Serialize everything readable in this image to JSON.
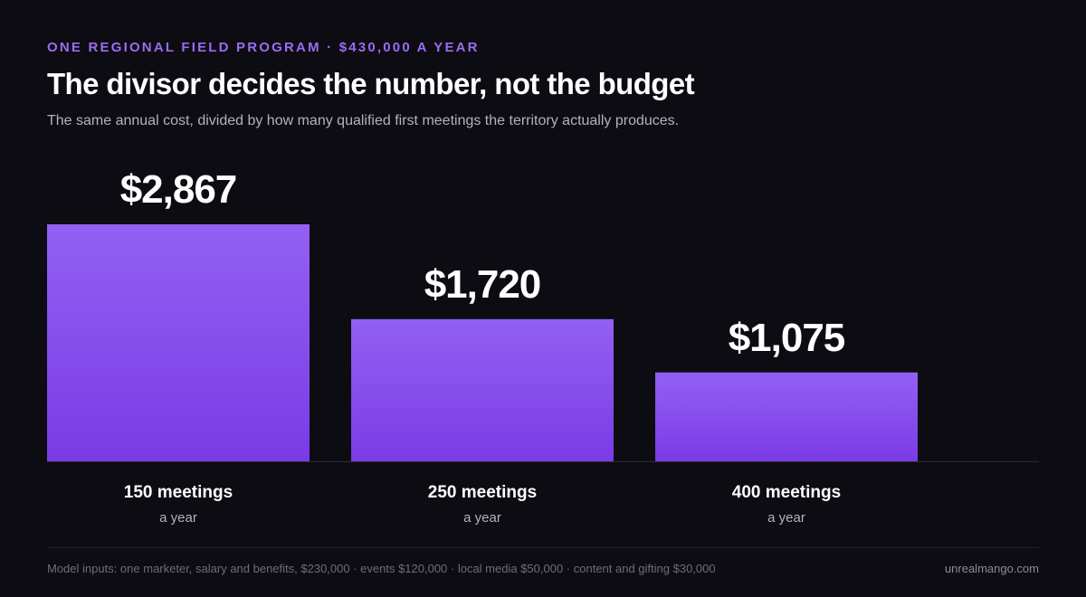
{
  "header": {
    "eyebrow": "ONE REGIONAL FIELD PROGRAM · $430,000 A YEAR",
    "title": "The divisor decides the number, not the budget",
    "subtitle": "The same annual cost, divided by how many qualified first meetings the territory actually produces."
  },
  "chart_data": {
    "type": "bar",
    "categories": [
      "150 meetings",
      "250 meetings",
      "400 meetings"
    ],
    "category_sublabels": [
      "a year",
      "a year",
      "a year"
    ],
    "values": [
      2867,
      1720,
      1075
    ],
    "value_labels": [
      "$2,867",
      "$1,720",
      "$1,075"
    ],
    "ylim": [
      0,
      3000
    ],
    "grid": false,
    "legend": "none"
  },
  "colors": {
    "background": "#0d0c12",
    "accent": "#9b6cf3",
    "bar_top": "#9360f2",
    "bar_bottom": "#7a3be6",
    "baseline": "#2d2b36"
  },
  "footer": {
    "note": "Model inputs: one marketer, salary and benefits, $230,000 · events $120,000 · local media $50,000 · content and gifting $30,000",
    "credit": "unrealmango.com"
  }
}
